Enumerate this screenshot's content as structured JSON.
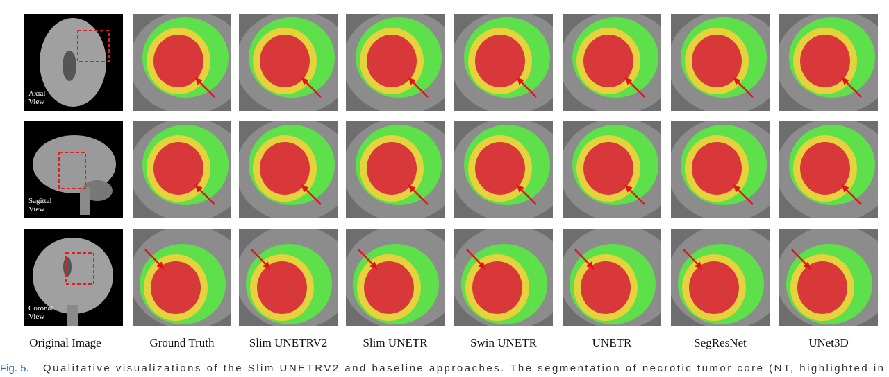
{
  "rows": [
    {
      "label": [
        "Axial",
        "View"
      ]
    },
    {
      "label": [
        "Sagittal",
        "View"
      ]
    },
    {
      "label": [
        "Coronal",
        "View"
      ]
    }
  ],
  "columns": [
    "Original Image",
    "Ground Truth",
    "Slim UNETRV2",
    "Slim UNETR",
    "Swin UNETR",
    "UNETR",
    "SegResNet",
    "UNet3D"
  ],
  "caption": {
    "fig": "Fig. 5.",
    "text": "Qualitative visualizations of the Slim UNETRV2 and baseline approaches. The segmentation of necrotic tumor core (NT, highlighted in"
  }
}
